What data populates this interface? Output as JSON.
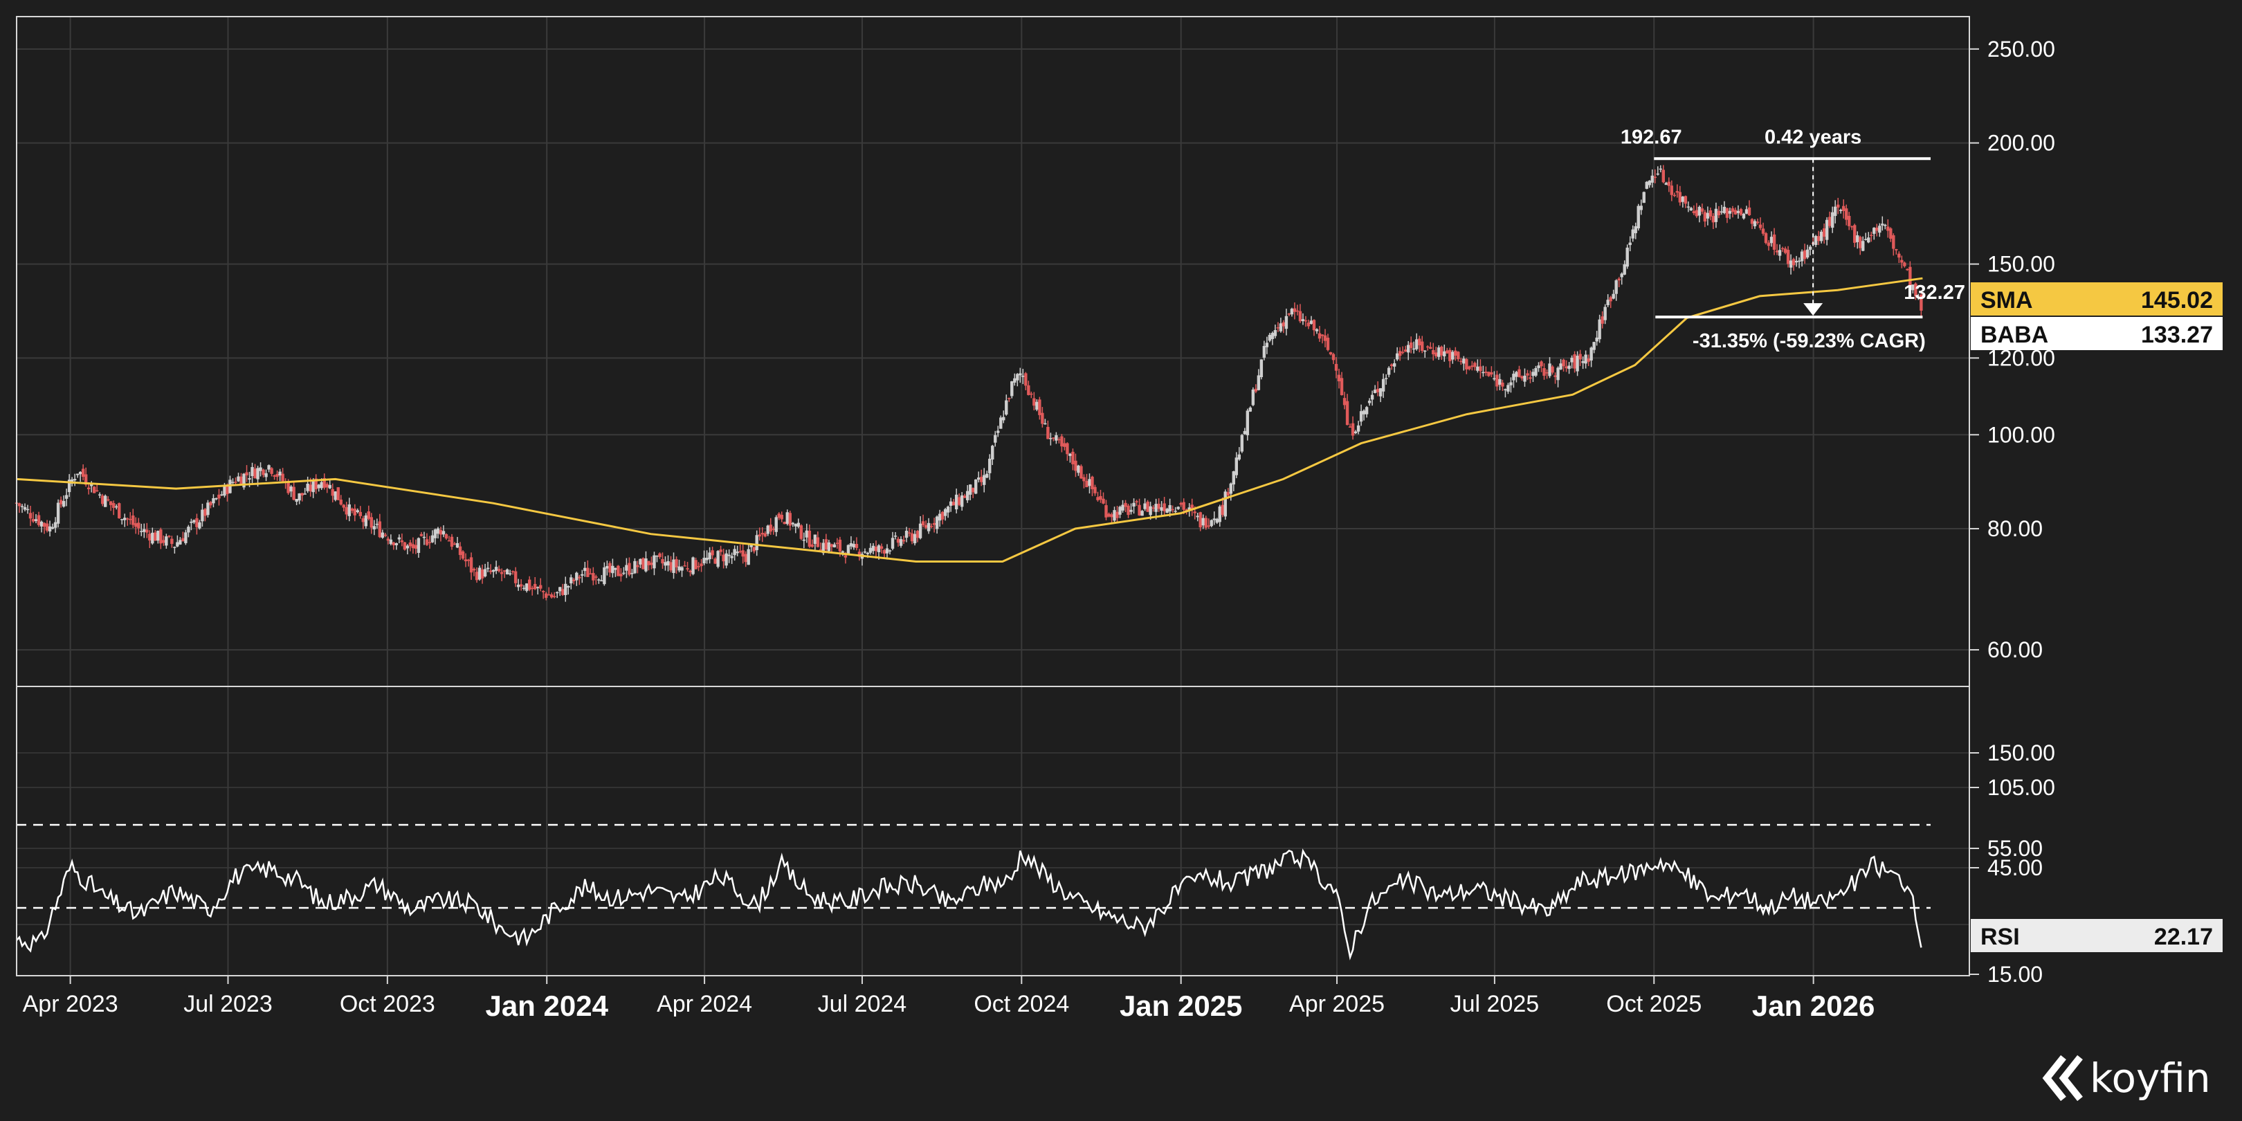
{
  "chart_data": [
    {
      "type": "line",
      "ticker": "BABA",
      "scale": "log",
      "ylim": [
        55,
        270
      ],
      "yticks": [
        "250.00",
        "200.00",
        "150.00",
        "120.00",
        "100.00",
        "80.00",
        "60.00"
      ],
      "ytick_values": [
        250,
        200,
        150,
        120,
        100,
        80,
        60
      ],
      "xlim": [
        "2023-03-01",
        "2026-04-01"
      ],
      "xticks": [
        {
          "label": "Apr 2023",
          "date": "2023-04-01",
          "major": false
        },
        {
          "label": "Jul 2023",
          "date": "2023-07-01",
          "major": false
        },
        {
          "label": "Oct 2023",
          "date": "2023-10-01",
          "major": false
        },
        {
          "label": "Jan 2024",
          "date": "2024-01-01",
          "major": true
        },
        {
          "label": "Apr 2024",
          "date": "2024-04-01",
          "major": false
        },
        {
          "label": "Jul 2024",
          "date": "2024-07-01",
          "major": false
        },
        {
          "label": "Oct 2024",
          "date": "2024-10-01",
          "major": false
        },
        {
          "label": "Jan 2025",
          "date": "2025-01-01",
          "major": true
        },
        {
          "label": "Apr 2025",
          "date": "2025-04-01",
          "major": false
        },
        {
          "label": "Jul 2025",
          "date": "2025-07-01",
          "major": false
        },
        {
          "label": "Oct 2025",
          "date": "2025-10-01",
          "major": false
        },
        {
          "label": "Jan 2026",
          "date": "2026-01-01",
          "major": true
        }
      ],
      "grid": true,
      "series": [
        {
          "name": "BABA",
          "style": "candlestick",
          "up_color": "#cfcfcf",
          "down_color": "#e05a5a",
          "x": [
            "2023-03-01",
            "2023-03-20",
            "2023-04-05",
            "2023-04-20",
            "2023-05-10",
            "2023-05-31",
            "2023-06-15",
            "2023-07-05",
            "2023-07-25",
            "2023-08-10",
            "2023-08-25",
            "2023-09-10",
            "2023-09-25",
            "2023-10-15",
            "2023-11-01",
            "2023-11-20",
            "2023-12-05",
            "2023-12-20",
            "2024-01-05",
            "2024-01-22",
            "2024-02-10",
            "2024-03-01",
            "2024-03-20",
            "2024-04-10",
            "2024-04-25",
            "2024-05-15",
            "2024-05-31",
            "2024-06-20",
            "2024-07-10",
            "2024-08-01",
            "2024-08-20",
            "2024-09-10",
            "2024-09-25",
            "2024-10-01",
            "2024-10-15",
            "2024-11-01",
            "2024-11-20",
            "2024-12-10",
            "2024-12-31",
            "2025-01-13",
            "2025-01-25",
            "2025-02-05",
            "2025-02-20",
            "2025-03-05",
            "2025-03-20",
            "2025-04-01",
            "2025-04-08",
            "2025-04-20",
            "2025-05-10",
            "2025-05-31",
            "2025-06-20",
            "2025-07-05",
            "2025-07-25",
            "2025-08-10",
            "2025-08-25",
            "2025-09-05",
            "2025-09-15",
            "2025-09-25",
            "2025-10-02",
            "2025-10-15",
            "2025-11-01",
            "2025-11-20",
            "2025-12-05",
            "2025-12-20",
            "2026-01-05",
            "2026-01-15",
            "2026-01-27",
            "2026-02-10",
            "2026-02-25",
            "2026-03-05"
          ],
          "values": [
            85,
            80,
            92,
            86,
            80,
            77,
            82,
            90,
            93,
            86,
            90,
            83,
            80,
            76,
            80,
            72,
            72,
            70,
            68,
            72,
            72,
            74,
            73,
            75,
            75,
            83,
            78,
            76,
            76,
            79,
            84,
            90,
            112,
            116,
            101,
            93,
            83,
            84,
            85,
            81,
            84,
            98,
            125,
            134,
            128,
            118,
            100,
            108,
            124,
            122,
            117,
            113,
            116,
            117,
            121,
            138,
            152,
            178,
            188,
            176,
            168,
            171,
            160,
            150,
            160,
            171,
            158,
            165,
            145,
            133
          ],
          "last_value": "133.27"
        },
        {
          "name": "SMA",
          "color": "#f5c842",
          "x": [
            "2023-03-01",
            "2023-06-01",
            "2023-09-01",
            "2023-12-01",
            "2024-03-01",
            "2024-06-01",
            "2024-08-01",
            "2024-09-20",
            "2024-11-01",
            "2025-01-01",
            "2025-03-01",
            "2025-04-15",
            "2025-06-15",
            "2025-08-15",
            "2025-09-20",
            "2025-10-20",
            "2025-12-01",
            "2026-01-15",
            "2026-03-05"
          ],
          "values": [
            90,
            88,
            90,
            85,
            79,
            76,
            74,
            74,
            80,
            83,
            90,
            98,
            105,
            110,
            118,
            132,
            139,
            141,
            145
          ],
          "last_value": "145.02"
        }
      ],
      "annotations": {
        "high_label": "192.67",
        "duration_label": "0.42 years",
        "low_label": "132.27",
        "change_label": "-31.35% (-59.23% CAGR)",
        "high_value": 192.67,
        "low_value": 132.27,
        "high_date": "2025-10-01",
        "low_date": "2026-03-05"
      }
    },
    {
      "type": "line",
      "indicator": "RSI",
      "yticks": [
        "150.00",
        "105.00",
        "55.00",
        "45.00",
        "15.00"
      ],
      "ytick_values": [
        150,
        105,
        55,
        45,
        15
      ],
      "ylim": [
        15,
        155
      ],
      "overbought": 70,
      "oversold": 30,
      "series": [
        {
          "name": "RSI",
          "color": "#ffffff",
          "x": [
            "2023-03-01",
            "2023-03-15",
            "2023-04-01",
            "2023-04-20",
            "2023-05-10",
            "2023-05-31",
            "2023-06-20",
            "2023-07-05",
            "2023-07-25",
            "2023-08-10",
            "2023-08-25",
            "2023-09-10",
            "2023-09-25",
            "2023-10-15",
            "2023-11-01",
            "2023-11-20",
            "2023-12-05",
            "2023-12-20",
            "2024-01-05",
            "2024-01-22",
            "2024-02-10",
            "2024-03-01",
            "2024-03-20",
            "2024-04-10",
            "2024-05-01",
            "2024-05-15",
            "2024-06-01",
            "2024-06-20",
            "2024-07-10",
            "2024-08-01",
            "2024-08-20",
            "2024-09-10",
            "2024-09-25",
            "2024-10-01",
            "2024-10-15",
            "2024-11-01",
            "2024-11-20",
            "2024-12-10",
            "2024-12-31",
            "2025-01-15",
            "2025-02-01",
            "2025-02-20",
            "2025-03-10",
            "2025-03-31",
            "2025-04-08",
            "2025-04-20",
            "2025-05-10",
            "2025-05-31",
            "2025-06-20",
            "2025-07-10",
            "2025-08-01",
            "2025-08-20",
            "2025-09-10",
            "2025-09-25",
            "2025-10-05",
            "2025-10-20",
            "2025-11-05",
            "2025-11-20",
            "2025-12-05",
            "2025-12-20",
            "2026-01-05",
            "2026-01-20",
            "2026-02-05",
            "2026-02-25",
            "2026-03-05"
          ],
          "values": [
            30,
            28,
            67,
            52,
            42,
            55,
            45,
            62,
            66,
            60,
            48,
            52,
            58,
            45,
            50,
            48,
            36,
            30,
            45,
            56,
            51,
            55,
            50,
            62,
            47,
            68,
            52,
            48,
            56,
            58,
            48,
            58,
            60,
            75,
            62,
            50,
            42,
            36,
            55,
            62,
            58,
            66,
            72,
            55,
            24,
            48,
            60,
            52,
            56,
            50,
            44,
            60,
            62,
            66,
            70,
            62,
            50,
            55,
            46,
            52,
            48,
            55,
            68,
            58,
            22.17
          ],
          "last_value": "22.17"
        }
      ]
    }
  ],
  "tags": {
    "sma_label": "SMA",
    "sma_value": "145.02",
    "baba_label": "BABA",
    "baba_value": "133.27",
    "rsi_label": "RSI",
    "rsi_value": "22.17"
  },
  "colors": {
    "background": "#1e1e1e",
    "grid": "#3a3a3a",
    "sma": "#f5c842",
    "up": "#cfcfcf",
    "down": "#e05a5a",
    "rsi": "#ffffff",
    "sma_tag": "#f5c842",
    "baba_tag": "#ffffff",
    "rsi_tag": "#ececec"
  },
  "branding": {
    "logo_text": "koyfin",
    "logo_icon": "koyfin-chevron-icon"
  }
}
